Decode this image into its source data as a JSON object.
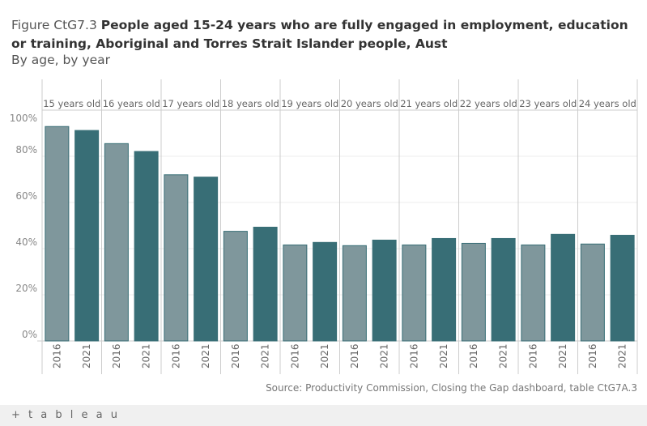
{
  "header": {
    "prefix": "Figure CtG7.3",
    "title": "People aged 15-24 years who are fully engaged in employment, education or training, Aboriginal and Torres Strait Islander people, Aust",
    "subtitle": "By age, by year"
  },
  "source": "Source: Productivity Commission, Closing the Gap dashboard, table CtG7A.3",
  "footer": {
    "logo": "+ t a b l e a u"
  },
  "chart_data": {
    "type": "bar",
    "ylim": [
      0,
      100
    ],
    "yticks": [
      "0%",
      "20%",
      "40%",
      "60%",
      "80%",
      "100%"
    ],
    "grid": true,
    "panels": [
      "15 years old",
      "16 years old",
      "17 years old",
      "18 years old",
      "19 years old",
      "20 years old",
      "21 years old",
      "22 years old",
      "23 years old",
      "24 years old"
    ],
    "categories": [
      "2016",
      "2021"
    ],
    "colors": {
      "2016": "#7f979c",
      "2021": "#386e76"
    },
    "values": [
      [
        92.9,
        91.2
      ],
      [
        85.5,
        82.1
      ],
      [
        72.0,
        71.0
      ],
      [
        47.5,
        49.3
      ],
      [
        41.6,
        42.7
      ],
      [
        41.3,
        43.7
      ],
      [
        41.6,
        44.4
      ],
      [
        42.3,
        44.4
      ],
      [
        41.6,
        46.2
      ],
      [
        42.0,
        45.8
      ]
    ]
  }
}
